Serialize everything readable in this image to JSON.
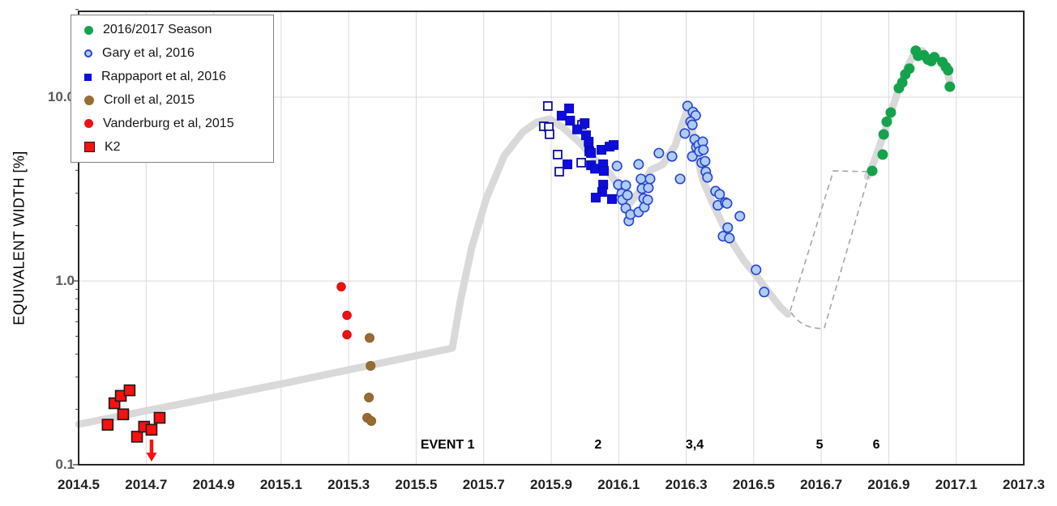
{
  "axes": {
    "x": {
      "tick_labels": [
        "2014.5",
        "2014.7",
        "2014.9",
        "2015.1",
        "2015.3",
        "2015.5",
        "2015.7",
        "2015.9",
        "2016.1",
        "2016.3",
        "2016.5",
        "2016.7",
        "2016.9",
        "2017.1",
        "2017.3"
      ]
    },
    "y": {
      "title": "EQUIVALENT WIDTH [%]",
      "scale": "log",
      "ticks": [
        {
          "label": "10.0",
          "value": 10
        },
        {
          "label": "1.0",
          "value": 1
        },
        {
          "label": "0.1",
          "value": 0.1
        }
      ]
    }
  },
  "legend": {
    "items": [
      {
        "label": "2016/2017 Season",
        "marker": "circle",
        "fill": "#14a24d",
        "edge": "#14a24d",
        "size": 11
      },
      {
        "label": "Gary et al, 2016",
        "marker": "circle",
        "fill": "#aecdf4",
        "edge": "#2743cf",
        "size": 10
      },
      {
        "label": "Rappaport et al, 2016",
        "marker": "square",
        "fill": "#0d0ddd",
        "edge": "#0d0ddd",
        "size": 9
      },
      {
        "label": "Croll et al, 2015",
        "marker": "circle",
        "fill": "#9a6b31",
        "edge": "#9a6b31",
        "size": 12
      },
      {
        "label": "Vanderburg et al, 2015",
        "marker": "circle",
        "fill": "#ee1111",
        "edge": "#ee1111",
        "size": 11
      },
      {
        "label": "K2",
        "marker": "square",
        "fill": "#fb0f0f",
        "edge": "#1a1a1a",
        "size": 13
      }
    ]
  },
  "events": [
    {
      "label": "EVENT 1",
      "t": 2015.593
    },
    {
      "label": "2",
      "t": 2016.039
    },
    {
      "label": "3,4",
      "t": 2016.325
    },
    {
      "label": "5",
      "t": 2016.695
    },
    {
      "label": "6",
      "t": 2016.863
    }
  ],
  "chart_data": {
    "type": "scatter",
    "title": "",
    "xlabel": "",
    "ylabel": "EQUIVALENT WIDTH [%]",
    "xlim": [
      2014.5,
      2017.3
    ],
    "ylim": [
      0.1,
      30.5
    ],
    "yscale": "log",
    "grid": {
      "vertical_every": 0.2,
      "horizontal_at": [
        1,
        10
      ],
      "color": "#d9d9d9"
    },
    "legend_position": "top-left",
    "series": [
      {
        "name": "2016/2017 Season",
        "marker": "circle",
        "fill": "#14a24d",
        "edge": "#14a24d",
        "edge_width": 0,
        "size": 13,
        "points": [
          [
            2016.851,
            3.97
          ],
          [
            2016.882,
            4.87
          ],
          [
            2016.885,
            6.27
          ],
          [
            2016.894,
            7.35
          ],
          [
            2016.906,
            8.25
          ],
          [
            2016.93,
            11.2
          ],
          [
            2016.94,
            12.0
          ],
          [
            2016.949,
            13.3
          ],
          [
            2016.961,
            14.3
          ],
          [
            2016.98,
            17.9
          ],
          [
            2016.987,
            16.8
          ],
          [
            2017.004,
            16.9
          ],
          [
            2017.016,
            16.0
          ],
          [
            2017.026,
            15.7
          ],
          [
            2017.035,
            16.5
          ],
          [
            2017.059,
            15.5
          ],
          [
            2017.069,
            14.6
          ],
          [
            2017.076,
            14.0
          ],
          [
            2017.081,
            11.4
          ]
        ]
      },
      {
        "name": "Gary et al, 2016",
        "marker": "circle",
        "fill": "#aecdf4",
        "edge": "#2743cf",
        "edge_width": 1.6,
        "size": 11.5,
        "points": [
          [
            2016.095,
            4.22
          ],
          [
            2016.099,
            3.34
          ],
          [
            2016.109,
            2.99
          ],
          [
            2016.111,
            2.76
          ],
          [
            2016.121,
            3.31
          ],
          [
            2016.126,
            2.93
          ],
          [
            2016.121,
            2.49
          ],
          [
            2016.13,
            2.12
          ],
          [
            2016.135,
            2.3
          ],
          [
            2016.159,
            2.37
          ],
          [
            2016.159,
            4.31
          ],
          [
            2016.166,
            3.59
          ],
          [
            2016.169,
            3.18
          ],
          [
            2016.174,
            2.81
          ],
          [
            2016.176,
            2.52
          ],
          [
            2016.186,
            2.76
          ],
          [
            2016.188,
            3.21
          ],
          [
            2016.193,
            3.59
          ],
          [
            2016.219,
            4.96
          ],
          [
            2016.258,
            4.76
          ],
          [
            2016.282,
            3.59
          ],
          [
            2016.296,
            6.34
          ],
          [
            2016.304,
            8.95
          ],
          [
            2016.32,
            8.3
          ],
          [
            2016.328,
            7.95
          ],
          [
            2016.313,
            7.35
          ],
          [
            2016.318,
            7.07
          ],
          [
            2016.325,
            5.9
          ],
          [
            2016.318,
            4.76
          ],
          [
            2016.33,
            5.33
          ],
          [
            2016.337,
            5.49
          ],
          [
            2016.339,
            5.07
          ],
          [
            2016.346,
            4.4
          ],
          [
            2016.349,
            5.72
          ],
          [
            2016.351,
            5.17
          ],
          [
            2016.356,
            4.48
          ],
          [
            2016.358,
            3.93
          ],
          [
            2016.363,
            3.66
          ],
          [
            2016.387,
            3.08
          ],
          [
            2016.399,
            2.96
          ],
          [
            2016.394,
            2.58
          ],
          [
            2016.416,
            2.67
          ],
          [
            2016.421,
            2.64
          ],
          [
            2016.423,
            1.95
          ],
          [
            2016.409,
            1.75
          ],
          [
            2016.428,
            1.71
          ],
          [
            2016.459,
            2.25
          ],
          [
            2016.507,
            1.15
          ],
          [
            2016.531,
            0.87
          ]
        ]
      },
      {
        "name": "Rappaport et al, 2016",
        "marker": "square",
        "fill": "#0d0ddd",
        "edge": "#0a0ab4",
        "edge_width": 1,
        "size": 11,
        "points": [
          [
            2015.953,
            8.68
          ],
          [
            2015.931,
            7.93
          ],
          [
            2015.956,
            7.45
          ],
          [
            2015.977,
            6.68
          ],
          [
            2015.999,
            7.22
          ],
          [
            2016.003,
            6.2
          ],
          [
            2016.011,
            5.72
          ],
          [
            2016.013,
            5.07
          ],
          [
            2016.018,
            4.97
          ],
          [
            2016.049,
            5.17
          ],
          [
            2016.073,
            5.38
          ],
          [
            2016.085,
            5.49
          ],
          [
            2015.948,
            4.31
          ],
          [
            2016.018,
            4.26
          ],
          [
            2016.03,
            4.08
          ],
          [
            2016.054,
            4.31
          ],
          [
            2016.056,
            3.97
          ],
          [
            2016.054,
            3.34
          ],
          [
            2016.051,
            3.05
          ],
          [
            2016.032,
            2.84
          ],
          [
            2016.08,
            2.79
          ]
        ]
      },
      {
        "name": "Rappaport et al, 2016 (open)",
        "marker": "square",
        "fill": "#ffffff",
        "edge": "#0a119b",
        "edge_width": 1.8,
        "size": 10,
        "points": [
          [
            2015.89,
            8.95
          ],
          [
            2015.878,
            6.94
          ],
          [
            2015.893,
            6.87
          ],
          [
            2015.895,
            6.28
          ],
          [
            2015.919,
            4.87
          ],
          [
            2015.924,
            3.93
          ],
          [
            2015.989,
            4.4
          ],
          [
            2015.991,
            7.07
          ]
        ]
      },
      {
        "name": "Croll et al, 2015",
        "marker": "circle",
        "fill": "#9a6b31",
        "edge": "#8a5e29",
        "edge_width": 1,
        "size": 11,
        "points": [
          [
            2015.362,
            0.49
          ],
          [
            2015.365,
            0.345
          ],
          [
            2015.36,
            0.232
          ],
          [
            2015.355,
            0.18
          ],
          [
            2015.367,
            0.173
          ]
        ]
      },
      {
        "name": "Vanderburg et al, 2015",
        "marker": "circle",
        "fill": "#ee1111",
        "edge": "#d40d0d",
        "edge_width": 1,
        "size": 10.5,
        "points": [
          [
            2015.278,
            0.93
          ],
          [
            2015.295,
            0.65
          ],
          [
            2015.295,
            0.51
          ]
        ]
      },
      {
        "name": "K2",
        "marker": "square",
        "fill": "#fb0f0f",
        "edge": "#1a1a1a",
        "edge_width": 1.6,
        "size": 13,
        "points": [
          [
            2014.586,
            0.165
          ],
          [
            2014.606,
            0.216
          ],
          [
            2014.625,
            0.237
          ],
          [
            2014.651,
            0.254
          ],
          [
            2014.632,
            0.188
          ],
          [
            2014.673,
            0.142
          ],
          [
            2014.694,
            0.161
          ],
          [
            2014.716,
            0.155
          ],
          [
            2014.74,
            0.18
          ]
        ]
      }
    ],
    "trend_band": {
      "color": "#d9d9d9",
      "stroke_width": 9,
      "solid_path": [
        [
          2014.5,
          0.166
        ],
        [
          2015.108,
          0.277
        ],
        [
          2015.607,
          0.431
        ],
        [
          2015.631,
          0.78
        ],
        [
          2015.665,
          1.53
        ],
        [
          2015.708,
          2.81
        ],
        [
          2015.761,
          4.81
        ],
        [
          2015.816,
          6.46
        ],
        [
          2015.857,
          7.3
        ],
        [
          2015.895,
          7.6
        ],
        [
          2015.936,
          6.8
        ],
        [
          2015.984,
          5.67
        ],
        [
          2016.032,
          4.53
        ],
        [
          2016.08,
          3.7
        ],
        [
          2016.111,
          3.02
        ],
        [
          2016.135,
          2.67
        ],
        [
          2016.164,
          3.12
        ],
        [
          2016.195,
          4.01
        ],
        [
          2016.231,
          4.31
        ],
        [
          2016.267,
          5.44
        ],
        [
          2016.291,
          7.38
        ],
        [
          2016.306,
          8.76
        ],
        [
          2016.328,
          5.17
        ],
        [
          2016.349,
          3.55
        ],
        [
          2016.375,
          2.73
        ],
        [
          2016.409,
          2.01
        ],
        [
          2016.44,
          1.58
        ],
        [
          2016.471,
          1.29
        ],
        [
          2016.507,
          1.07
        ],
        [
          2016.548,
          0.85
        ],
        [
          2016.579,
          0.72
        ],
        [
          2016.601,
          0.66
        ]
      ],
      "season_path": [
        [
          2016.837,
          3.7
        ],
        [
          2016.856,
          4.44
        ],
        [
          2016.88,
          5.9
        ],
        [
          2016.904,
          8.0
        ],
        [
          2016.928,
          10.9
        ],
        [
          2016.956,
          14.7
        ],
        [
          2016.98,
          17.9
        ],
        [
          2016.999,
          17.9
        ],
        [
          2017.019,
          16.3
        ],
        [
          2017.038,
          16.6
        ],
        [
          2017.057,
          15.6
        ],
        [
          2017.071,
          14.3
        ],
        [
          2017.081,
          12.1
        ]
      ]
    },
    "dashed_region": {
      "color": "#a6a6a6",
      "vertices": [
        [
          2016.608,
          0.688
        ],
        [
          2016.736,
          3.97
        ],
        [
          2016.844,
          3.93
        ],
        [
          2016.709,
          0.552
        ]
      ],
      "bottom_curve_ctrl": [
        2016.639,
        0.544
      ]
    },
    "upper_limit_arrow": {
      "series": "K2",
      "t": 2014.716,
      "v_from": 0.137,
      "v_to": 0.104,
      "color": "#fb0f0f"
    }
  }
}
